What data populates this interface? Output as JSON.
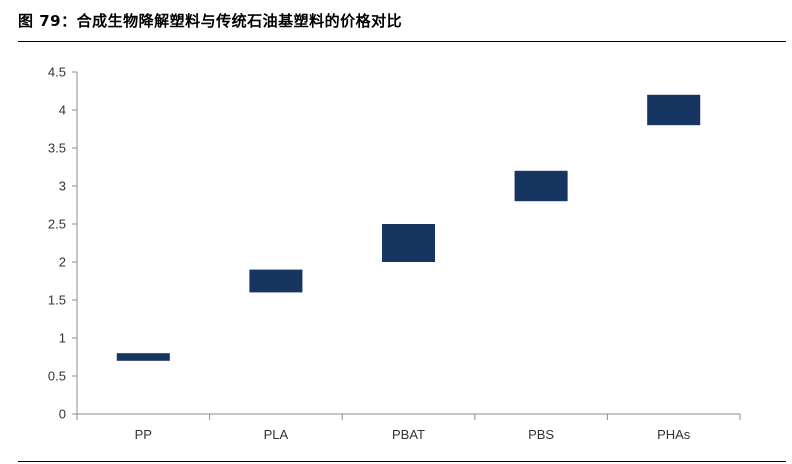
{
  "figure": {
    "title": "图 79：合成生物降解塑料与传统石油基塑料的价格对比"
  },
  "colors": {
    "bar": "#163561",
    "axis": "#8c8c8c",
    "text": "#333333"
  },
  "chart_data": {
    "type": "bar",
    "subtype": "floating-range",
    "title": "",
    "xlabel": "",
    "ylabel": "",
    "categories": [
      "PP",
      "PLA",
      "PBAT",
      "PBS",
      "PHAs"
    ],
    "series": [
      {
        "low": [
          0.7,
          1.6,
          2.0,
          2.8,
          3.8
        ],
        "high": [
          0.8,
          1.9,
          2.5,
          3.2,
          4.2
        ]
      }
    ],
    "ylim": [
      0,
      4.5
    ],
    "yticks": [
      "0",
      "0.5",
      "1",
      "1.5",
      "2",
      "2.5",
      "3",
      "3.5",
      "4",
      "4.5"
    ],
    "grid": false,
    "legend": "none"
  }
}
